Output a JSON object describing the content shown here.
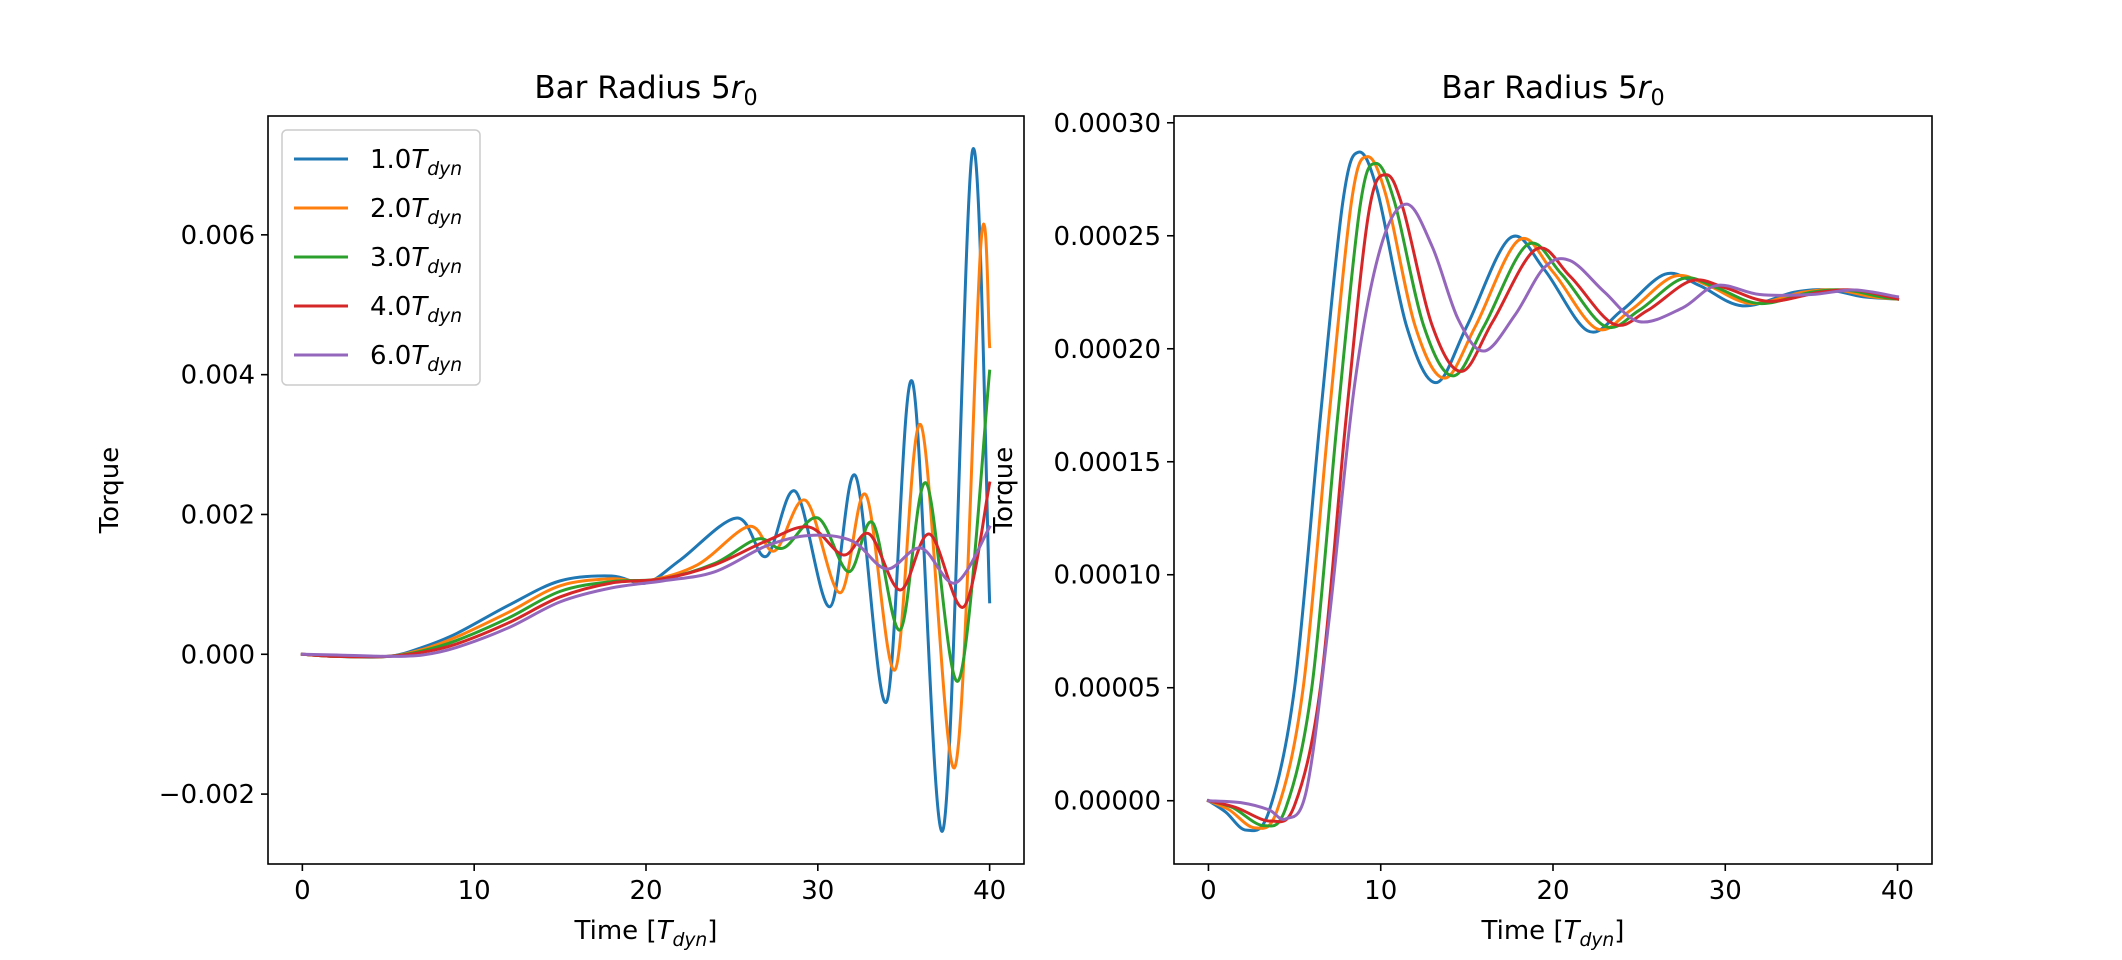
{
  "chart_data": [
    {
      "type": "line",
      "title": "Bar Radius 5r₀",
      "xlabel": "Time [T_dyn]",
      "ylabel": "Torque",
      "xlim": [
        -2,
        42
      ],
      "ylim": [
        -0.003,
        0.0077
      ],
      "xticks": [
        0,
        10,
        20,
        30,
        40
      ],
      "xtick_labels": [
        "0",
        "10",
        "20",
        "30",
        "40"
      ],
      "yticks": [
        -0.002,
        0.0,
        0.002,
        0.004,
        0.006
      ],
      "ytick_labels": [
        "−0.002",
        "0.000",
        "0.002",
        "0.004",
        "0.006"
      ],
      "legend": "upper-left",
      "series": [
        {
          "name": "1.0T_dyn",
          "color": "#1f77b4",
          "x": [
            0,
            2,
            5,
            7,
            9,
            12,
            15,
            18,
            20,
            22,
            25.3,
            27,
            28.7,
            30.7,
            32.2,
            34,
            35.5,
            37.3,
            39,
            40
          ],
          "y": [
            0,
            -3e-05,
            -3e-05,
            0.0001,
            0.0003,
            0.0007,
            0.00105,
            0.00112,
            0.00102,
            0.00135,
            0.00195,
            0.0014,
            0.00233,
            0.00068,
            0.00255,
            -0.00068,
            0.0039,
            -0.0025,
            0.0072,
            0.00075
          ]
        },
        {
          "name": "2.0T_dyn",
          "color": "#ff7f0e",
          "x": [
            0,
            2,
            5,
            7,
            9,
            12,
            15,
            18,
            20,
            23,
            26,
            27.5,
            29.3,
            31.3,
            32.8,
            34.5,
            36,
            38,
            39.5,
            40
          ],
          "y": [
            0,
            -3e-05,
            -3e-05,
            7e-05,
            0.00025,
            0.0006,
            0.00098,
            0.00108,
            0.00105,
            0.00128,
            0.00183,
            0.00148,
            0.0022,
            0.00088,
            0.00228,
            -0.00022,
            0.00328,
            -0.0016,
            0.0059,
            0.0044
          ]
        },
        {
          "name": "3.0T_dyn",
          "color": "#2ca02c",
          "x": [
            0,
            2,
            5,
            7,
            9,
            12,
            15,
            18,
            21,
            24,
            26.5,
            28,
            30,
            31.8,
            33.2,
            34.8,
            36.3,
            38.2,
            40
          ],
          "y": [
            0,
            -3e-05,
            -3e-05,
            5e-05,
            0.0002,
            0.00052,
            0.0009,
            0.00104,
            0.00108,
            0.0013,
            0.00165,
            0.00152,
            0.00195,
            0.00118,
            0.00188,
            0.00035,
            0.00245,
            -0.00037,
            0.00405
          ]
        },
        {
          "name": "4.0T_dyn",
          "color": "#d62728",
          "x": [
            0,
            2,
            5,
            7,
            9,
            12,
            15,
            18,
            21,
            24,
            27,
            29.5,
            31.5,
            33,
            34.8,
            36.5,
            38.5,
            40
          ],
          "y": [
            0,
            -3e-05,
            -3e-05,
            3e-05,
            0.00015,
            0.00045,
            0.00082,
            0.00102,
            0.00108,
            0.00128,
            0.00162,
            0.00182,
            0.00142,
            0.00172,
            0.00092,
            0.00172,
            0.00068,
            0.00245
          ]
        },
        {
          "name": "6.0T_dyn",
          "color": "#9467bd",
          "x": [
            0,
            2,
            5,
            7,
            9,
            12,
            15,
            18,
            21,
            24,
            27,
            29.5,
            32,
            34,
            36,
            38,
            40
          ],
          "y": [
            0,
            -1e-05,
            -3e-05,
            -1e-05,
            0.0001,
            0.00038,
            0.00075,
            0.00095,
            0.00105,
            0.00118,
            0.00155,
            0.0017,
            0.00162,
            0.00122,
            0.00152,
            0.00102,
            0.00182
          ]
        }
      ]
    },
    {
      "type": "line",
      "title": "Bar Radius 5r₀",
      "xlabel": "Time [T_dyn]",
      "ylabel": "Torque",
      "xlim": [
        -2,
        42
      ],
      "ylim": [
        -2.8e-05,
        0.000303
      ],
      "xticks": [
        0,
        10,
        20,
        30,
        40
      ],
      "xtick_labels": [
        "0",
        "10",
        "20",
        "30",
        "40"
      ],
      "yticks": [
        0.0,
        5e-05,
        0.0001,
        0.00015,
        0.0002,
        0.00025,
        0.0003
      ],
      "ytick_labels": [
        "0.00000",
        "0.00005",
        "0.00010",
        "0.00015",
        "0.00020",
        "0.00025",
        "0.00030"
      ],
      "series": [
        {
          "name": "1.0T_dyn",
          "color": "#1f77b4",
          "x": [
            0,
            1,
            2.2,
            3.5,
            5,
            6.5,
            7.8,
            8.7,
            9.8,
            11.5,
            13.2,
            15,
            17.5,
            19.5,
            22,
            24,
            26.5,
            28.5,
            31,
            34,
            36,
            38,
            40
          ],
          "y": [
            0,
            -5e-06,
            -1.3e-05,
            -5e-06,
            5e-05,
            0.00017,
            0.000265,
            0.000287,
            0.00027,
            0.00021,
            0.000185,
            0.00021,
            0.000249,
            0.000235,
            0.000208,
            0.000217,
            0.000233,
            0.000228,
            0.000219,
            0.000225,
            0.000226,
            0.000223,
            0.000222
          ]
        },
        {
          "name": "2.0T_dyn",
          "color": "#ff7f0e",
          "x": [
            0,
            1.2,
            2.7,
            4,
            5.5,
            7,
            8.3,
            9.2,
            10.3,
            12,
            13.7,
            15.5,
            18,
            20,
            22.5,
            24.5,
            27,
            29,
            31.5,
            34.5,
            36.5,
            38.5,
            40
          ],
          "y": [
            0,
            -4e-06,
            -1.2e-05,
            -4e-06,
            5e-05,
            0.00017,
            0.000265,
            0.000285,
            0.000268,
            0.00021,
            0.000187,
            0.00021,
            0.000248,
            0.000234,
            0.000209,
            0.000217,
            0.000232,
            0.000228,
            0.00022,
            0.000225,
            0.000226,
            0.000223,
            0.000222
          ]
        },
        {
          "name": "3.0T_dyn",
          "color": "#2ca02c",
          "x": [
            0,
            1.4,
            3.2,
            4.5,
            6,
            7.5,
            8.8,
            9.7,
            10.8,
            12.5,
            14.2,
            16,
            18.5,
            20.5,
            23,
            25,
            27.5,
            29.5,
            32,
            35,
            37,
            39,
            40
          ],
          "y": [
            0,
            -3e-06,
            -1.1e-05,
            -3e-06,
            5e-05,
            0.00017,
            0.000263,
            0.000282,
            0.000265,
            0.00021,
            0.000188,
            0.00021,
            0.000246,
            0.000233,
            0.00021,
            0.000217,
            0.000231,
            0.000227,
            0.00022,
            0.000225,
            0.000226,
            0.000223,
            0.000222
          ]
        },
        {
          "name": "4.0T_dyn",
          "color": "#d62728",
          "x": [
            0,
            1.6,
            3.6,
            5,
            6.5,
            8,
            9.3,
            10.3,
            11.3,
            13,
            14.7,
            16.5,
            19,
            21,
            23.5,
            25.5,
            28,
            30,
            32.5,
            35.5,
            37.5,
            39.5,
            40
          ],
          "y": [
            0,
            -3e-06,
            -9e-06,
            -2e-06,
            5e-05,
            0.00017,
            0.00026,
            0.000277,
            0.000262,
            0.00021,
            0.00019,
            0.000212,
            0.000244,
            0.000232,
            0.000211,
            0.000217,
            0.00023,
            0.000227,
            0.000221,
            0.000225,
            0.000226,
            0.000223,
            0.000222
          ]
        },
        {
          "name": "6.0T_dyn",
          "color": "#9467bd",
          "x": [
            0,
            2,
            3.5,
            4.5,
            5.7,
            7,
            8.5,
            10,
            11.5,
            13,
            14.5,
            16,
            17.8,
            19.5,
            21,
            23,
            25,
            27.5,
            29.5,
            32,
            35,
            37.5,
            40
          ],
          "y": [
            0,
            -1e-06,
            -4e-06,
            -8e-06,
            5e-06,
            8e-05,
            0.000185,
            0.000245,
            0.000264,
            0.000245,
            0.000213,
            0.000199,
            0.000215,
            0.000236,
            0.000239,
            0.000225,
            0.000212,
            0.000218,
            0.000228,
            0.000224,
            0.000224,
            0.000226,
            0.000223
          ]
        }
      ]
    }
  ]
}
